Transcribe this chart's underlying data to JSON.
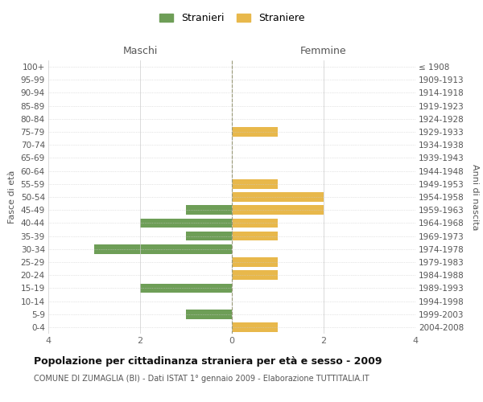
{
  "age_groups": [
    "100+",
    "95-99",
    "90-94",
    "85-89",
    "80-84",
    "75-79",
    "70-74",
    "65-69",
    "60-64",
    "55-59",
    "50-54",
    "45-49",
    "40-44",
    "35-39",
    "30-34",
    "25-29",
    "20-24",
    "15-19",
    "10-14",
    "5-9",
    "0-4"
  ],
  "birth_years": [
    "≤ 1908",
    "1909-1913",
    "1914-1918",
    "1919-1923",
    "1924-1928",
    "1929-1933",
    "1934-1938",
    "1939-1943",
    "1944-1948",
    "1949-1953",
    "1954-1958",
    "1959-1963",
    "1964-1968",
    "1969-1973",
    "1974-1978",
    "1979-1983",
    "1984-1988",
    "1989-1993",
    "1994-1998",
    "1999-2003",
    "2004-2008"
  ],
  "maschi": [
    0,
    0,
    0,
    0,
    0,
    0,
    0,
    0,
    0,
    0,
    0,
    1,
    2,
    1,
    3,
    0,
    0,
    2,
    0,
    1,
    0
  ],
  "femmine": [
    0,
    0,
    0,
    0,
    0,
    1,
    0,
    0,
    0,
    1,
    2,
    2,
    1,
    1,
    0,
    1,
    1,
    0,
    0,
    0,
    1
  ],
  "maschi_color": "#6e9e57",
  "femmine_color": "#e8b84b",
  "background_color": "#ffffff",
  "grid_color": "#cccccc",
  "center_line_color": "#999977",
  "title": "Popolazione per cittadinanza straniera per età e sesso - 2009",
  "subtitle": "COMUNE DI ZUMAGLIA (BI) - Dati ISTAT 1° gennaio 2009 - Elaborazione TUTTITALIA.IT",
  "xlabel_left": "Maschi",
  "xlabel_right": "Femmine",
  "ylabel_left": "Fasce di età",
  "ylabel_right": "Anni di nascita",
  "legend_maschi": "Stranieri",
  "legend_femmine": "Straniere",
  "xlim": 4
}
